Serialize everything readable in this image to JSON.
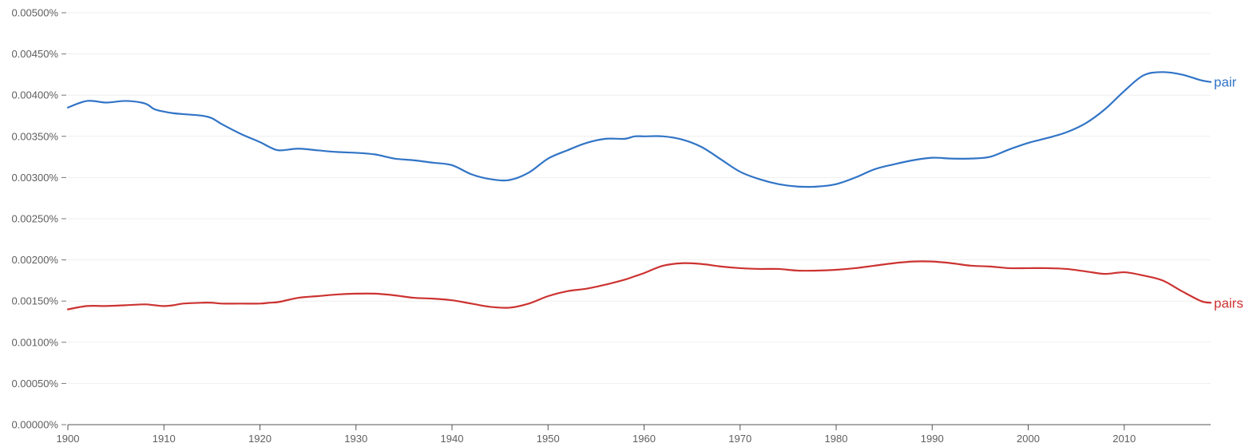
{
  "chart_data": {
    "type": "line",
    "title": "",
    "xlabel": "",
    "ylabel": "",
    "xlim": [
      1900,
      2019
    ],
    "ylim": [
      0,
      0.005
    ],
    "grid": true,
    "legend": "inline-right",
    "x_ticks": [
      1900,
      1910,
      1920,
      1930,
      1940,
      1950,
      1960,
      1970,
      1980,
      1990,
      2000,
      2010
    ],
    "y_ticks": [
      "0.00000%",
      "0.00050%",
      "0.00100%",
      "0.00150%",
      "0.00200%",
      "0.00250%",
      "0.00300%",
      "0.00350%",
      "0.00400%",
      "0.00450%",
      "0.00500%"
    ],
    "x": [
      1900,
      1902,
      1904,
      1906,
      1908,
      1909,
      1910,
      1911,
      1912,
      1914,
      1915,
      1916,
      1918,
      1920,
      1921,
      1922,
      1924,
      1926,
      1928,
      1930,
      1932,
      1934,
      1936,
      1938,
      1940,
      1942,
      1944,
      1946,
      1948,
      1950,
      1952,
      1954,
      1956,
      1958,
      1959,
      1960,
      1962,
      1964,
      1966,
      1968,
      1970,
      1972,
      1974,
      1976,
      1978,
      1980,
      1982,
      1984,
      1986,
      1988,
      1990,
      1992,
      1994,
      1996,
      1998,
      2000,
      2002,
      2004,
      2006,
      2008,
      2010,
      2012,
      2014,
      2016,
      2018,
      2019
    ],
    "series": [
      {
        "name": "pair",
        "color": "#3174c6",
        "values": [
          0.00385,
          0.00393,
          0.00391,
          0.00393,
          0.0039,
          0.00383,
          0.0038,
          0.00378,
          0.00377,
          0.00375,
          0.00372,
          0.00365,
          0.00353,
          0.00343,
          0.00337,
          0.00333,
          0.00335,
          0.00333,
          0.00331,
          0.0033,
          0.00328,
          0.00323,
          0.00321,
          0.00318,
          0.00315,
          0.00304,
          0.00298,
          0.00297,
          0.00306,
          0.00323,
          0.00333,
          0.00342,
          0.00347,
          0.00347,
          0.0035,
          0.0035,
          0.0035,
          0.00346,
          0.00337,
          0.00322,
          0.00307,
          0.00298,
          0.00292,
          0.00289,
          0.00289,
          0.00292,
          0.003,
          0.0031,
          0.00316,
          0.00321,
          0.00324,
          0.00323,
          0.00323,
          0.00325,
          0.00334,
          0.00342,
          0.00348,
          0.00355,
          0.00366,
          0.00383,
          0.00405,
          0.00424,
          0.00428,
          0.00425,
          0.00418,
          0.00416
        ]
      },
      {
        "name": "pairs",
        "color": "#cc3331",
        "values": [
          0.0014,
          0.00144,
          0.00144,
          0.00145,
          0.00146,
          0.00145,
          0.00144,
          0.00145,
          0.00147,
          0.00148,
          0.00148,
          0.00147,
          0.00147,
          0.00147,
          0.00148,
          0.00149,
          0.00154,
          0.00156,
          0.00158,
          0.00159,
          0.00159,
          0.00157,
          0.00154,
          0.00153,
          0.00151,
          0.00147,
          0.00143,
          0.00142,
          0.00147,
          0.00156,
          0.00162,
          0.00165,
          0.0017,
          0.00176,
          0.0018,
          0.00184,
          0.00193,
          0.00196,
          0.00195,
          0.00192,
          0.0019,
          0.00189,
          0.00189,
          0.00187,
          0.00187,
          0.00188,
          0.0019,
          0.00193,
          0.00196,
          0.00198,
          0.00198,
          0.00196,
          0.00193,
          0.00192,
          0.0019,
          0.0019,
          0.0019,
          0.00189,
          0.00186,
          0.00183,
          0.00185,
          0.00181,
          0.00175,
          0.00162,
          0.0015,
          0.00148
        ]
      }
    ]
  }
}
